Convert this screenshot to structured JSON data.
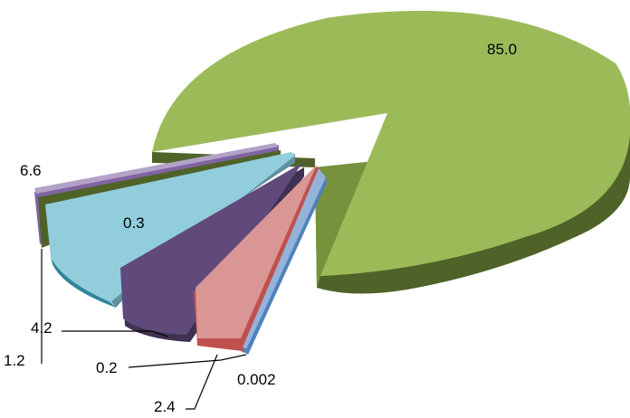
{
  "chart_data": {
    "type": "pie",
    "style": "3d-exploded",
    "title": "",
    "slices": [
      {
        "label": "85.0",
        "value": 85.0,
        "color": "#9bbb59"
      },
      {
        "label": "0.002",
        "value": 0.002,
        "color": "#7fa6d9"
      },
      {
        "label": "2.4",
        "value": 2.4,
        "color": "#d99694"
      },
      {
        "label": "0.2",
        "value": 0.2,
        "color": "#c0504d"
      },
      {
        "label": "4.2",
        "value": 4.2,
        "color": "#604a7b"
      },
      {
        "label": "0.3",
        "value": 0.3,
        "color": "#92cddc"
      },
      {
        "label": "1.2",
        "value": 1.2,
        "color": "#4f6228"
      },
      {
        "label": "6.6",
        "value": 6.6,
        "color": "#b3a2c7"
      }
    ],
    "legend": "none"
  }
}
